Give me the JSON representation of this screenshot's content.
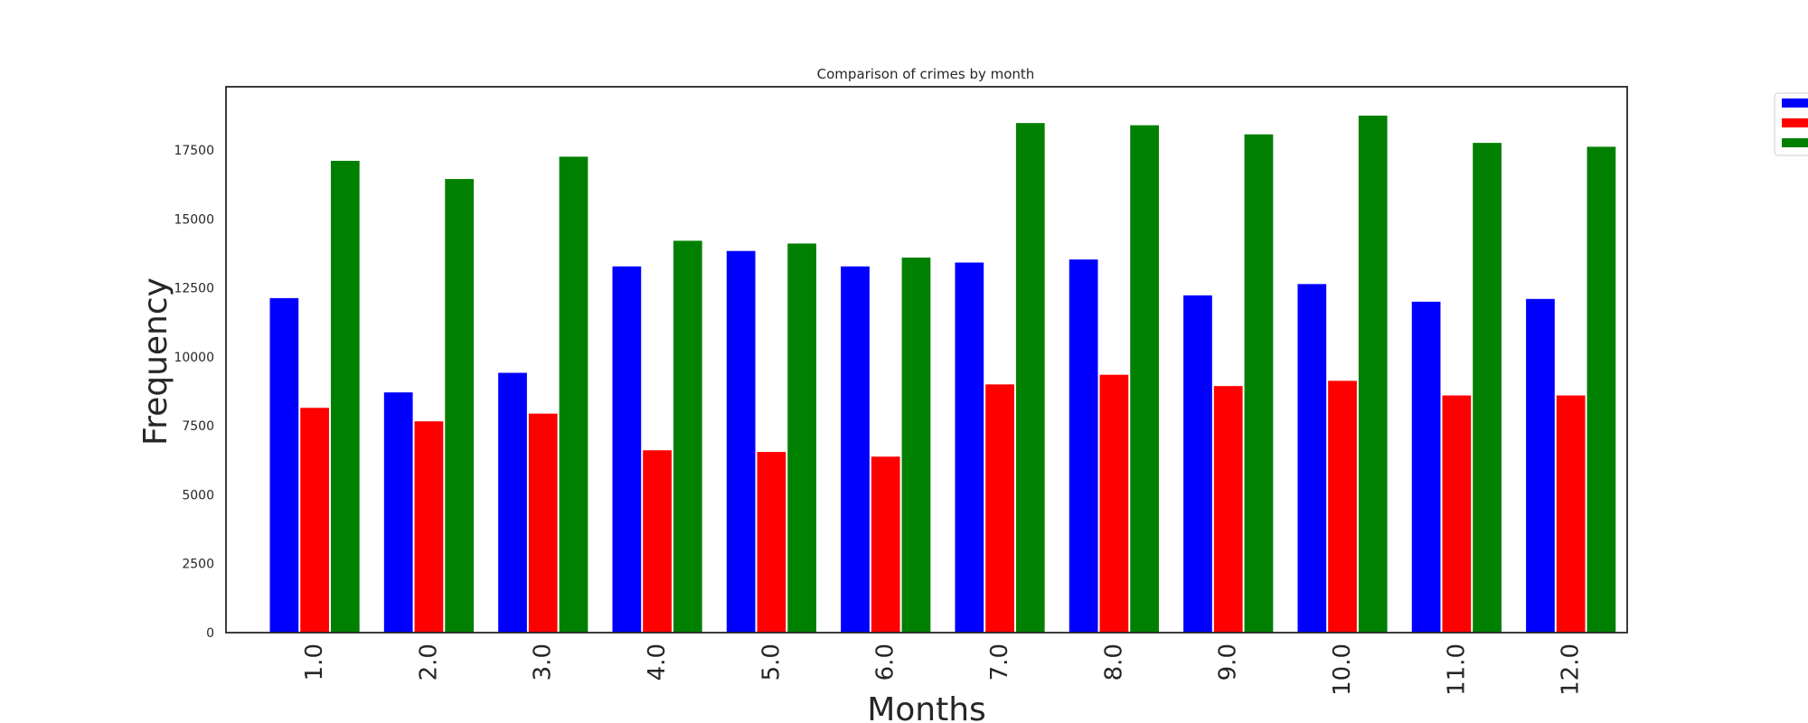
{
  "chart_data": {
    "type": "bar",
    "title": "Comparison of crimes by month",
    "xlabel": "Months",
    "ylabel": "Frequency",
    "categories": [
      "1.0",
      "2.0",
      "3.0",
      "4.0",
      "5.0",
      "6.0",
      "7.0",
      "8.0",
      "9.0",
      "10.0",
      "11.0",
      "12.0"
    ],
    "series": [
      {
        "color": "#0000ff",
        "values": [
          12150,
          8730,
          9440,
          13300,
          13860,
          13300,
          13440,
          13550,
          12250,
          12660,
          12020,
          12120
        ]
      },
      {
        "color": "#ff0000",
        "values": [
          8170,
          7680,
          7960,
          6630,
          6570,
          6400,
          9020,
          9370,
          8960,
          9150,
          8620,
          8620
        ]
      },
      {
        "color": "#008000",
        "values": [
          17130,
          16470,
          17280,
          14230,
          14130,
          13620,
          18500,
          18420,
          18090,
          18770,
          17780,
          17640
        ]
      }
    ],
    "yticks": [
      0,
      2500,
      5000,
      7500,
      10000,
      12500,
      15000,
      17500
    ],
    "ylim": [
      0,
      19800
    ],
    "grid": false,
    "legend_position": "outside top-right",
    "legend_labels_visible": false
  }
}
